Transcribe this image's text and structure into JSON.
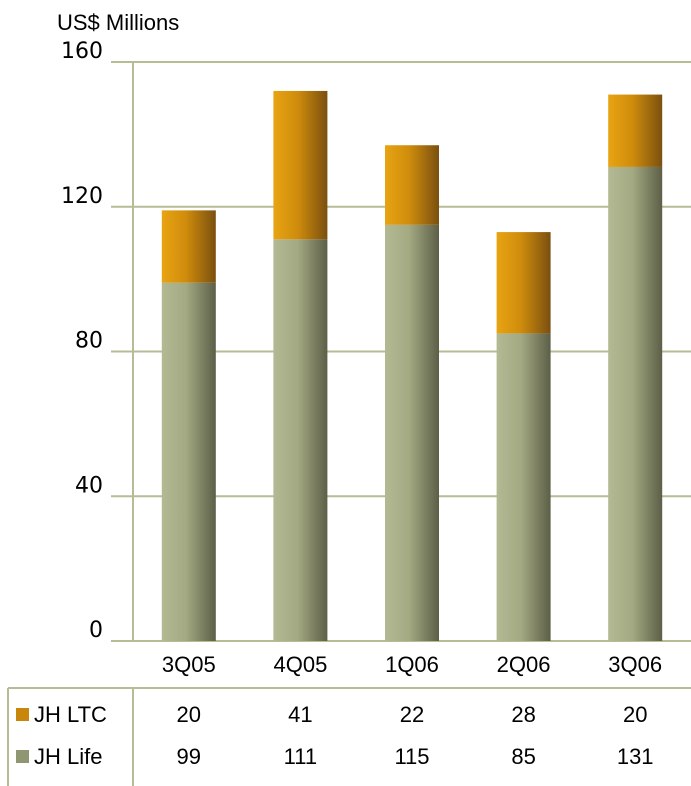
{
  "chart_data": {
    "type": "bar",
    "stacked": true,
    "unit_label": "US$ Millions",
    "categories": [
      "3Q05",
      "4Q05",
      "1Q06",
      "2Q06",
      "3Q06"
    ],
    "ylim": [
      0,
      160
    ],
    "yticks": [
      0,
      40,
      80,
      120,
      160
    ],
    "grid": true,
    "series": [
      {
        "name": "JH Life",
        "values": [
          99,
          111,
          115,
          85,
          131
        ],
        "color": "#a7ad86"
      },
      {
        "name": "JH LTC",
        "values": [
          20,
          41,
          22,
          28,
          20
        ],
        "color": "#d9940f"
      }
    ],
    "data_table": {
      "rows": [
        {
          "label": "JH LTC",
          "values": [
            "20",
            "41",
            "22",
            "28",
            "20"
          ],
          "color": "#c8860b"
        },
        {
          "label": "JH Life",
          "values": [
            "99",
            "111",
            "115",
            "85",
            "131"
          ],
          "color": "#8f9672"
        }
      ]
    },
    "gridline_color": "#b7bc96"
  }
}
